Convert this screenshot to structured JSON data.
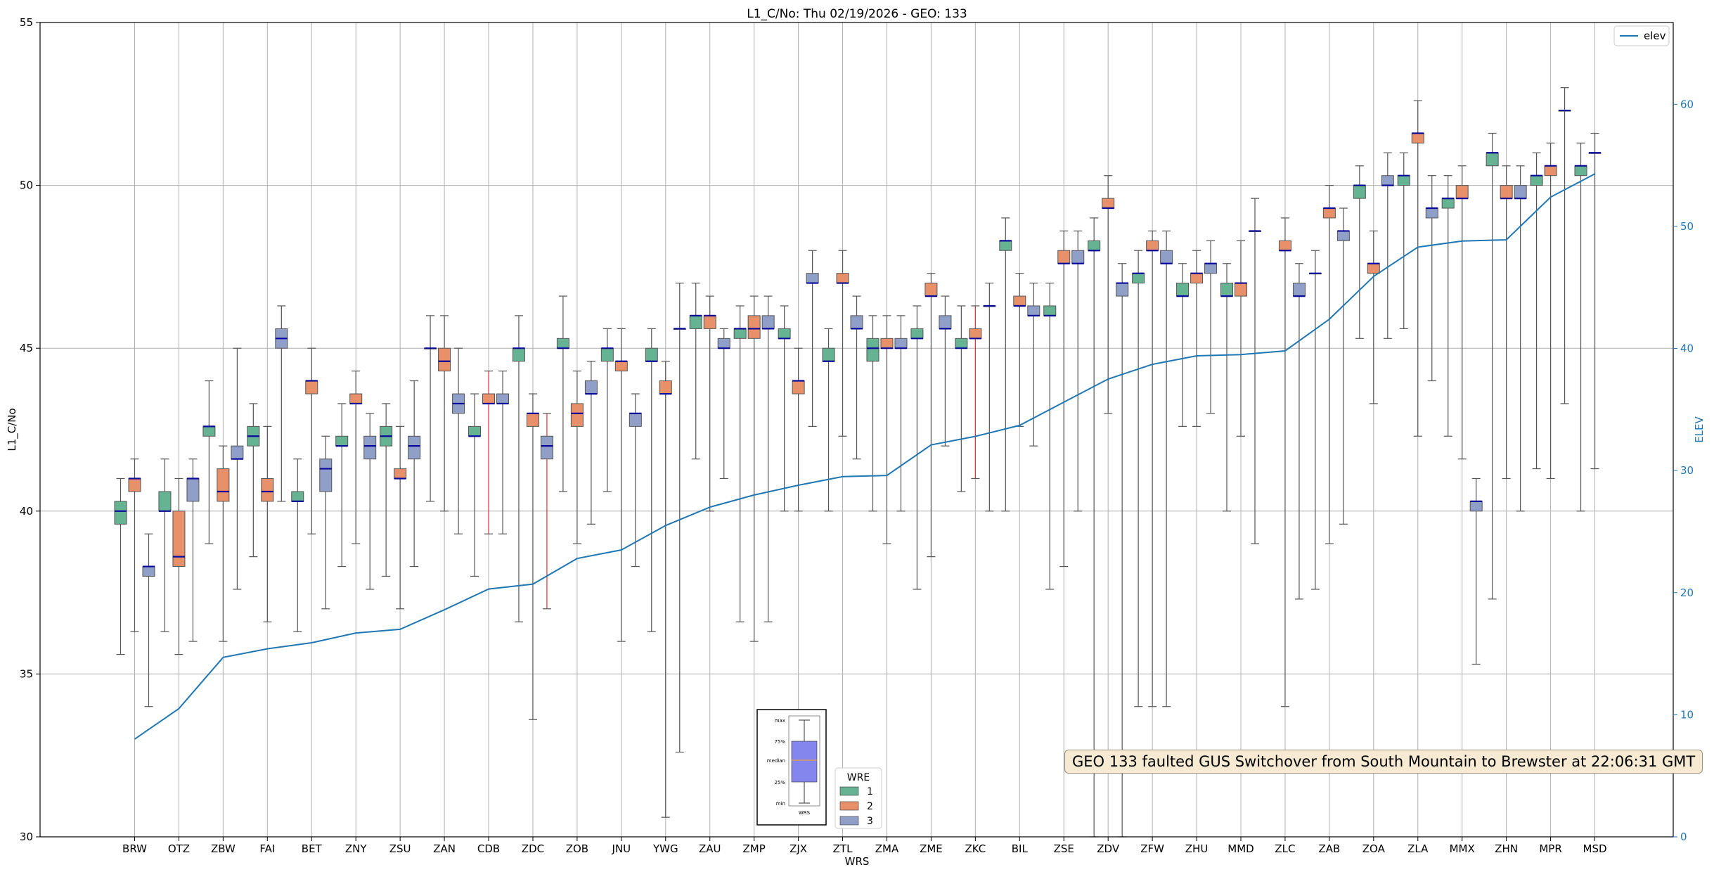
{
  "chart_data": {
    "type": "boxplot",
    "title": "L1_C/No: Thu 02/19/2026 - GEO: 133",
    "xlabel": "WRS",
    "ylabel": "L1_C/No",
    "ylim": [
      30,
      55
    ],
    "yticks": [
      "30",
      "35",
      "40",
      "45",
      "50",
      "55"
    ],
    "y2label": "ELEV",
    "y2lim": [
      0,
      66.7
    ],
    "y2ticks": [
      "0",
      "10",
      "20",
      "30",
      "40",
      "50",
      "60"
    ],
    "grid": true,
    "categories": [
      "BRW",
      "OTZ",
      "ZBW",
      "FAI",
      "BET",
      "ZNY",
      "ZSU",
      "ZAN",
      "CDB",
      "ZDC",
      "ZOB",
      "JNU",
      "YWG",
      "ZAU",
      "ZMP",
      "ZJX",
      "ZTL",
      "ZMA",
      "ZME",
      "ZKC",
      "BIL",
      "ZSE",
      "ZDV",
      "ZFW",
      "ZHU",
      "MMD",
      "ZLC",
      "ZAB",
      "ZOA",
      "ZLA",
      "MMX",
      "ZHN",
      "MPR",
      "MSD"
    ],
    "wre_colors": {
      "1": "#66b394",
      "2": "#e8906a",
      "3": "#8f9fc8"
    },
    "boxes": [
      {
        "site": "BRW",
        "wre": 1,
        "min": 35.6,
        "q1": 39.6,
        "median": 40.0,
        "q3": 40.3,
        "max": 41.0
      },
      {
        "site": "BRW",
        "wre": 2,
        "min": 36.3,
        "q1": 40.6,
        "median": 41.0,
        "q3": 41.0,
        "max": 41.6
      },
      {
        "site": "BRW",
        "wre": 3,
        "min": 34.0,
        "q1": 38.0,
        "median": 38.3,
        "q3": 38.3,
        "max": 39.3
      },
      {
        "site": "OTZ",
        "wre": 1,
        "min": 36.3,
        "q1": 40.0,
        "median": 40.0,
        "q3": 40.6,
        "max": 41.6
      },
      {
        "site": "OTZ",
        "wre": 2,
        "min": 35.6,
        "q1": 38.3,
        "median": 38.6,
        "q3": 40.0,
        "max": 41.0
      },
      {
        "site": "OTZ",
        "wre": 3,
        "min": 36.0,
        "q1": 40.3,
        "median": 41.0,
        "q3": 41.0,
        "max": 41.6
      },
      {
        "site": "ZBW",
        "wre": 1,
        "min": 39.0,
        "q1": 42.3,
        "median": 42.6,
        "q3": 42.6,
        "max": 44.0
      },
      {
        "site": "ZBW",
        "wre": 2,
        "min": 36.0,
        "q1": 40.3,
        "median": 40.6,
        "q3": 41.3,
        "max": 42.0
      },
      {
        "site": "ZBW",
        "wre": 3,
        "min": 37.6,
        "q1": 41.6,
        "median": 41.6,
        "q3": 42.0,
        "max": 45.0
      },
      {
        "site": "FAI",
        "wre": 1,
        "min": 38.6,
        "q1": 42.0,
        "median": 42.3,
        "q3": 42.6,
        "max": 43.3
      },
      {
        "site": "FAI",
        "wre": 2,
        "min": 36.6,
        "q1": 40.3,
        "median": 40.6,
        "q3": 41.0,
        "max": 42.6
      },
      {
        "site": "FAI",
        "wre": 3,
        "min": 40.3,
        "q1": 45.0,
        "median": 45.3,
        "q3": 45.6,
        "max": 46.3
      },
      {
        "site": "BET",
        "wre": 1,
        "min": 36.3,
        "q1": 40.3,
        "median": 40.3,
        "q3": 40.6,
        "max": 41.6
      },
      {
        "site": "BET",
        "wre": 2,
        "min": 39.3,
        "q1": 43.6,
        "median": 44.0,
        "q3": 44.0,
        "max": 45.0
      },
      {
        "site": "BET",
        "wre": 3,
        "min": 37.0,
        "q1": 40.6,
        "median": 41.3,
        "q3": 41.6,
        "max": 42.3
      },
      {
        "site": "ZNY",
        "wre": 1,
        "min": 38.3,
        "q1": 42.0,
        "median": 42.0,
        "q3": 42.3,
        "max": 43.3
      },
      {
        "site": "ZNY",
        "wre": 2,
        "min": 39.0,
        "q1": 43.3,
        "median": 43.3,
        "q3": 43.6,
        "max": 44.3
      },
      {
        "site": "ZNY",
        "wre": 3,
        "min": 37.6,
        "q1": 41.6,
        "median": 42.0,
        "q3": 42.3,
        "max": 43.0
      },
      {
        "site": "ZSU",
        "wre": 1,
        "min": 38.0,
        "q1": 42.0,
        "median": 42.3,
        "q3": 42.6,
        "max": 43.3
      },
      {
        "site": "ZSU",
        "wre": 2,
        "min": 37.0,
        "q1": 41.0,
        "median": 41.0,
        "q3": 41.3,
        "max": 42.6
      },
      {
        "site": "ZSU",
        "wre": 3,
        "min": 38.3,
        "q1": 41.6,
        "median": 42.0,
        "q3": 42.3,
        "max": 44.0
      },
      {
        "site": "ZAN",
        "wre": 1,
        "min": 40.3,
        "q1": 45.0,
        "median": 45.0,
        "q3": 45.0,
        "max": 46.0
      },
      {
        "site": "ZAN",
        "wre": 2,
        "min": 40.0,
        "q1": 44.3,
        "median": 44.6,
        "q3": 45.0,
        "max": 46.0
      },
      {
        "site": "ZAN",
        "wre": 3,
        "min": 39.3,
        "q1": 43.0,
        "median": 43.3,
        "q3": 43.6,
        "max": 45.0
      },
      {
        "site": "CDB",
        "wre": 1,
        "min": 38.0,
        "q1": 42.3,
        "median": 42.3,
        "q3": 42.6,
        "max": 43.6
      },
      {
        "site": "CDB",
        "wre": 2,
        "min": 39.3,
        "q1": 43.3,
        "median": 43.3,
        "q3": 43.6,
        "max": 44.3,
        "red_whisker": true
      },
      {
        "site": "CDB",
        "wre": 3,
        "min": 39.3,
        "q1": 43.3,
        "median": 43.3,
        "q3": 43.6,
        "max": 44.3
      },
      {
        "site": "ZDC",
        "wre": 1,
        "min": 36.6,
        "q1": 44.6,
        "median": 45.0,
        "q3": 45.0,
        "max": 46.0
      },
      {
        "site": "ZDC",
        "wre": 2,
        "min": 33.6,
        "q1": 42.6,
        "median": 43.0,
        "q3": 43.0,
        "max": 43.6
      },
      {
        "site": "ZDC",
        "wre": 3,
        "min": 37.0,
        "q1": 41.6,
        "median": 42.0,
        "q3": 42.3,
        "max": 43.0,
        "red_whisker": true
      },
      {
        "site": "ZOB",
        "wre": 1,
        "min": 40.6,
        "q1": 45.0,
        "median": 45.0,
        "q3": 45.3,
        "max": 46.6
      },
      {
        "site": "ZOB",
        "wre": 2,
        "min": 39.0,
        "q1": 42.6,
        "median": 43.0,
        "q3": 43.3,
        "max": 44.3
      },
      {
        "site": "ZOB",
        "wre": 3,
        "min": 39.6,
        "q1": 43.6,
        "median": 43.6,
        "q3": 44.0,
        "max": 44.6
      },
      {
        "site": "JNU",
        "wre": 1,
        "min": 40.6,
        "q1": 44.6,
        "median": 45.0,
        "q3": 45.0,
        "max": 45.6
      },
      {
        "site": "JNU",
        "wre": 2,
        "min": 36.0,
        "q1": 44.3,
        "median": 44.6,
        "q3": 44.6,
        "max": 45.6
      },
      {
        "site": "JNU",
        "wre": 3,
        "min": 38.3,
        "q1": 42.6,
        "median": 43.0,
        "q3": 43.0,
        "max": 43.6
      },
      {
        "site": "YWG",
        "wre": 1,
        "min": 36.3,
        "q1": 44.6,
        "median": 44.6,
        "q3": 45.0,
        "max": 45.6
      },
      {
        "site": "YWG",
        "wre": 2,
        "min": 30.6,
        "q1": 43.6,
        "median": 43.6,
        "q3": 44.0,
        "max": 44.6
      },
      {
        "site": "YWG",
        "wre": 3,
        "min": 32.6,
        "q1": 45.6,
        "median": 45.6,
        "q3": 45.6,
        "max": 47.0
      },
      {
        "site": "ZAU",
        "wre": 1,
        "min": 41.6,
        "q1": 45.6,
        "median": 46.0,
        "q3": 46.0,
        "max": 47.0
      },
      {
        "site": "ZAU",
        "wre": 2,
        "min": 40.0,
        "q1": 45.6,
        "median": 46.0,
        "q3": 46.0,
        "max": 46.6
      },
      {
        "site": "ZAU",
        "wre": 3,
        "min": 41.0,
        "q1": 45.0,
        "median": 45.0,
        "q3": 45.3,
        "max": 45.6
      },
      {
        "site": "ZMP",
        "wre": 1,
        "min": 36.6,
        "q1": 45.3,
        "median": 45.6,
        "q3": 45.6,
        "max": 46.3
      },
      {
        "site": "ZMP",
        "wre": 2,
        "min": 36.0,
        "q1": 45.3,
        "median": 45.6,
        "q3": 46.0,
        "max": 46.6
      },
      {
        "site": "ZMP",
        "wre": 3,
        "min": 36.6,
        "q1": 45.6,
        "median": 45.6,
        "q3": 46.0,
        "max": 46.6
      },
      {
        "site": "ZJX",
        "wre": 1,
        "min": 40.0,
        "q1": 45.3,
        "median": 45.3,
        "q3": 45.6,
        "max": 46.3
      },
      {
        "site": "ZJX",
        "wre": 2,
        "min": 40.0,
        "q1": 43.6,
        "median": 44.0,
        "q3": 44.0,
        "max": 45.0
      },
      {
        "site": "ZJX",
        "wre": 3,
        "min": 42.6,
        "q1": 47.0,
        "median": 47.0,
        "q3": 47.3,
        "max": 48.0
      },
      {
        "site": "ZTL",
        "wre": 1,
        "min": 40.0,
        "q1": 44.6,
        "median": 44.6,
        "q3": 45.0,
        "max": 45.6
      },
      {
        "site": "ZTL",
        "wre": 2,
        "min": 42.3,
        "q1": 47.0,
        "median": 47.0,
        "q3": 47.3,
        "max": 48.0
      },
      {
        "site": "ZTL",
        "wre": 3,
        "min": 41.6,
        "q1": 45.6,
        "median": 45.6,
        "q3": 46.0,
        "max": 46.6
      },
      {
        "site": "ZMA",
        "wre": 1,
        "min": 40.0,
        "q1": 44.6,
        "median": 45.0,
        "q3": 45.3,
        "max": 46.0
      },
      {
        "site": "ZMA",
        "wre": 2,
        "min": 39.0,
        "q1": 45.0,
        "median": 45.0,
        "q3": 45.3,
        "max": 46.0
      },
      {
        "site": "ZMA",
        "wre": 3,
        "min": 40.0,
        "q1": 45.0,
        "median": 45.0,
        "q3": 45.3,
        "max": 46.0
      },
      {
        "site": "ZME",
        "wre": 1,
        "min": 37.6,
        "q1": 45.3,
        "median": 45.3,
        "q3": 45.6,
        "max": 46.3
      },
      {
        "site": "ZME",
        "wre": 2,
        "min": 38.6,
        "q1": 46.6,
        "median": 46.6,
        "q3": 47.0,
        "max": 47.3
      },
      {
        "site": "ZME",
        "wre": 3,
        "min": 42.0,
        "q1": 45.6,
        "median": 45.6,
        "q3": 46.0,
        "max": 46.6
      },
      {
        "site": "ZKC",
        "wre": 1,
        "min": 40.6,
        "q1": 45.0,
        "median": 45.0,
        "q3": 45.3,
        "max": 46.3
      },
      {
        "site": "ZKC",
        "wre": 2,
        "min": 41.0,
        "q1": 45.3,
        "median": 45.3,
        "q3": 45.6,
        "max": 46.3,
        "red_whisker": true
      },
      {
        "site": "ZKC",
        "wre": 3,
        "min": 40.0,
        "q1": 46.3,
        "median": 46.3,
        "q3": 46.3,
        "max": 47.0
      },
      {
        "site": "BIL",
        "wre": 1,
        "min": 40.0,
        "q1": 48.0,
        "median": 48.3,
        "q3": 48.3,
        "max": 49.0
      },
      {
        "site": "BIL",
        "wre": 2,
        "min": 42.6,
        "q1": 46.3,
        "median": 46.3,
        "q3": 46.6,
        "max": 47.3
      },
      {
        "site": "BIL",
        "wre": 3,
        "min": 42.0,
        "q1": 46.0,
        "median": 46.0,
        "q3": 46.3,
        "max": 47.0
      },
      {
        "site": "ZSE",
        "wre": 1,
        "min": 37.6,
        "q1": 46.0,
        "median": 46.0,
        "q3": 46.3,
        "max": 47.0
      },
      {
        "site": "ZSE",
        "wre": 2,
        "min": 38.3,
        "q1": 47.6,
        "median": 47.6,
        "q3": 48.0,
        "max": 48.6
      },
      {
        "site": "ZSE",
        "wre": 3,
        "min": 40.0,
        "q1": 47.6,
        "median": 47.6,
        "q3": 48.0,
        "max": 48.6
      },
      {
        "site": "ZDV",
        "wre": 1,
        "min": 30.0,
        "q1": 48.0,
        "median": 48.0,
        "q3": 48.3,
        "max": 49.0
      },
      {
        "site": "ZDV",
        "wre": 2,
        "min": 43.0,
        "q1": 49.3,
        "median": 49.3,
        "q3": 49.6,
        "max": 50.3
      },
      {
        "site": "ZDV",
        "wre": 3,
        "min": 30.0,
        "q1": 46.6,
        "median": 47.0,
        "q3": 47.0,
        "max": 47.6
      },
      {
        "site": "ZFW",
        "wre": 1,
        "min": 34.0,
        "q1": 47.0,
        "median": 47.3,
        "q3": 47.3,
        "max": 48.0
      },
      {
        "site": "ZFW",
        "wre": 2,
        "min": 34.0,
        "q1": 48.0,
        "median": 48.0,
        "q3": 48.3,
        "max": 48.6
      },
      {
        "site": "ZFW",
        "wre": 3,
        "min": 34.0,
        "q1": 47.6,
        "median": 47.6,
        "q3": 48.0,
        "max": 48.6
      },
      {
        "site": "ZHU",
        "wre": 1,
        "min": 42.6,
        "q1": 46.6,
        "median": 46.6,
        "q3": 47.0,
        "max": 47.6
      },
      {
        "site": "ZHU",
        "wre": 2,
        "min": 42.6,
        "q1": 47.0,
        "median": 47.3,
        "q3": 47.3,
        "max": 48.0
      },
      {
        "site": "ZHU",
        "wre": 3,
        "min": 43.0,
        "q1": 47.3,
        "median": 47.6,
        "q3": 47.6,
        "max": 48.3
      },
      {
        "site": "MMD",
        "wre": 1,
        "min": 40.0,
        "q1": 46.6,
        "median": 46.6,
        "q3": 47.0,
        "max": 47.6
      },
      {
        "site": "MMD",
        "wre": 2,
        "min": 42.3,
        "q1": 46.6,
        "median": 47.0,
        "q3": 47.0,
        "max": 48.3
      },
      {
        "site": "MMD",
        "wre": 3,
        "min": 39.0,
        "q1": 48.6,
        "median": 48.6,
        "q3": 48.6,
        "max": 49.6
      },
      {
        "site": "ZLC",
        "wre": 2,
        "min": 34.0,
        "q1": 48.0,
        "median": 48.0,
        "q3": 48.3,
        "max": 49.0
      },
      {
        "site": "ZLC",
        "wre": 3,
        "min": 37.3,
        "q1": 46.6,
        "median": 46.6,
        "q3": 47.0,
        "max": 47.6
      },
      {
        "site": "ZAB",
        "wre": 1,
        "min": 37.6,
        "q1": 47.3,
        "median": 47.3,
        "q3": 47.3,
        "max": 48.0
      },
      {
        "site": "ZAB",
        "wre": 2,
        "min": 39.0,
        "q1": 49.0,
        "median": 49.3,
        "q3": 49.3,
        "max": 50.0
      },
      {
        "site": "ZAB",
        "wre": 3,
        "min": 39.6,
        "q1": 48.3,
        "median": 48.6,
        "q3": 48.6,
        "max": 49.3
      },
      {
        "site": "ZOA",
        "wre": 1,
        "min": 45.3,
        "q1": 49.6,
        "median": 50.0,
        "q3": 50.0,
        "max": 50.6
      },
      {
        "site": "ZOA",
        "wre": 2,
        "min": 43.3,
        "q1": 47.3,
        "median": 47.6,
        "q3": 47.6,
        "max": 48.6
      },
      {
        "site": "ZOA",
        "wre": 3,
        "min": 45.3,
        "q1": 50.0,
        "median": 50.0,
        "q3": 50.3,
        "max": 51.0
      },
      {
        "site": "ZLA",
        "wre": 1,
        "min": 45.6,
        "q1": 50.0,
        "median": 50.3,
        "q3": 50.3,
        "max": 51.0
      },
      {
        "site": "ZLA",
        "wre": 2,
        "min": 42.3,
        "q1": 51.3,
        "median": 51.6,
        "q3": 51.6,
        "max": 52.6
      },
      {
        "site": "ZLA",
        "wre": 3,
        "min": 44.0,
        "q1": 49.0,
        "median": 49.3,
        "q3": 49.3,
        "max": 50.3
      },
      {
        "site": "MMX",
        "wre": 1,
        "min": 42.3,
        "q1": 49.3,
        "median": 49.6,
        "q3": 49.6,
        "max": 50.3
      },
      {
        "site": "MMX",
        "wre": 2,
        "min": 41.6,
        "q1": 49.6,
        "median": 49.6,
        "q3": 50.0,
        "max": 50.6
      },
      {
        "site": "MMX",
        "wre": 3,
        "min": 35.3,
        "q1": 40.0,
        "median": 40.3,
        "q3": 40.3,
        "max": 41.0
      },
      {
        "site": "ZHN",
        "wre": 1,
        "min": 37.3,
        "q1": 50.6,
        "median": 51.0,
        "q3": 51.0,
        "max": 51.6
      },
      {
        "site": "ZHN",
        "wre": 2,
        "min": 41.0,
        "q1": 49.6,
        "median": 49.6,
        "q3": 50.0,
        "max": 50.6
      },
      {
        "site": "ZHN",
        "wre": 3,
        "min": 40.0,
        "q1": 49.6,
        "median": 49.6,
        "q3": 50.0,
        "max": 50.6
      },
      {
        "site": "MPR",
        "wre": 1,
        "min": 41.3,
        "q1": 50.0,
        "median": 50.3,
        "q3": 50.3,
        "max": 51.0
      },
      {
        "site": "MPR",
        "wre": 2,
        "min": 41.0,
        "q1": 50.3,
        "median": 50.6,
        "q3": 50.6,
        "max": 51.3
      },
      {
        "site": "MPR",
        "wre": 3,
        "min": 43.3,
        "q1": 52.3,
        "median": 52.3,
        "q3": 52.3,
        "max": 53.0
      },
      {
        "site": "MSD",
        "wre": 1,
        "min": 40.0,
        "q1": 50.3,
        "median": 50.6,
        "q3": 50.6,
        "max": 51.3
      },
      {
        "site": "MSD",
        "wre": 2,
        "min": 41.3,
        "q1": 51.0,
        "median": 51.0,
        "q3": 51.0,
        "max": 51.6
      }
    ],
    "elev_series": {
      "name": "elev",
      "color": "#1f77b4",
      "values": [
        8.0,
        10.5,
        14.7,
        15.4,
        15.9,
        16.7,
        17.0,
        18.6,
        20.3,
        20.7,
        22.8,
        23.5,
        25.5,
        27.0,
        28.0,
        28.8,
        29.5,
        29.6,
        32.1,
        32.8,
        33.7,
        35.6,
        37.5,
        38.7,
        39.4,
        39.5,
        39.8,
        42.4,
        45.9,
        48.3,
        48.8,
        48.9,
        52.4,
        54.3
      ]
    },
    "legend_elev": {
      "label": "elev",
      "position": "top-right"
    },
    "legend_wre": {
      "title": "WRE",
      "entries": [
        {
          "label": "1",
          "color": "#66b394"
        },
        {
          "label": "2",
          "color": "#e8906a"
        },
        {
          "label": "3",
          "color": "#8f9fc8"
        }
      ],
      "position": "bottom-center"
    },
    "key_image": {
      "labels": [
        "max",
        "75%",
        "median",
        "25%",
        "min"
      ],
      "caption": "WRS"
    },
    "annotation": "GEO 133 faulted GUS Switchover from South Mountain to Brewster at 22:06:31 GMT"
  }
}
